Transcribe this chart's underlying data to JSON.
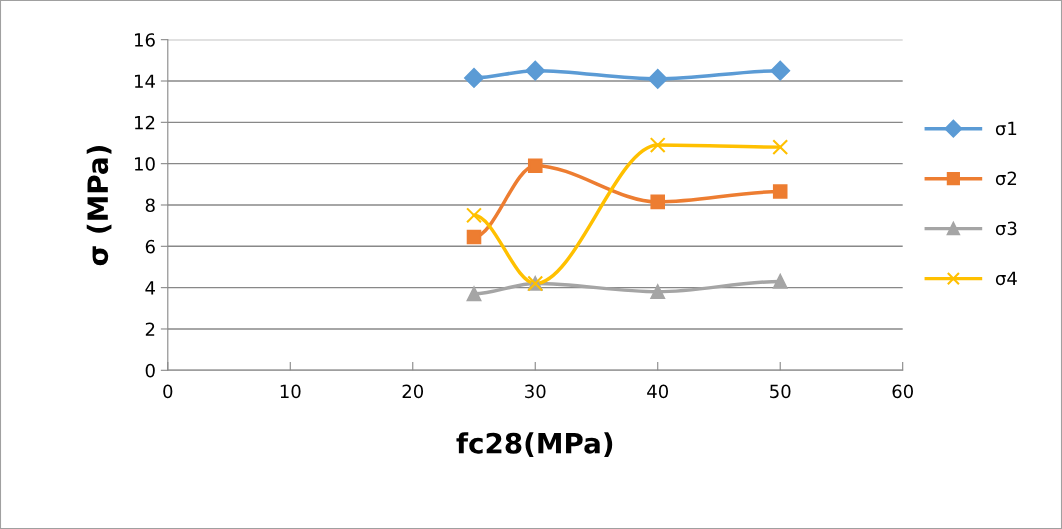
{
  "chart_data": {
    "type": "line",
    "xlabel": "fc28(MPa)",
    "ylabel": "σ (MPa)",
    "x": [
      25,
      30,
      40,
      50
    ],
    "series": [
      {
        "name": "σ1",
        "color": "#5b9bd5",
        "marker": "diamond",
        "values": [
          14.15,
          14.5,
          14.1,
          14.5
        ]
      },
      {
        "name": "σ2",
        "color": "#ed7d31",
        "marker": "square",
        "values": [
          6.45,
          9.9,
          8.15,
          8.65
        ]
      },
      {
        "name": "σ3",
        "color": "#a5a5a5",
        "marker": "triangle",
        "values": [
          3.7,
          4.2,
          3.8,
          4.3
        ]
      },
      {
        "name": "σ4",
        "color": "#ffc000",
        "marker": "cross",
        "values": [
          7.5,
          4.2,
          10.9,
          10.8
        ]
      }
    ],
    "xlim": [
      0,
      60
    ],
    "xticks": [
      0,
      10,
      20,
      30,
      40,
      50,
      60
    ],
    "ylim": [
      0,
      16
    ],
    "yticks": [
      0,
      2,
      4,
      6,
      8,
      10,
      12,
      14,
      16
    ],
    "grid": "y",
    "legend": "right",
    "line_style": "solid"
  }
}
